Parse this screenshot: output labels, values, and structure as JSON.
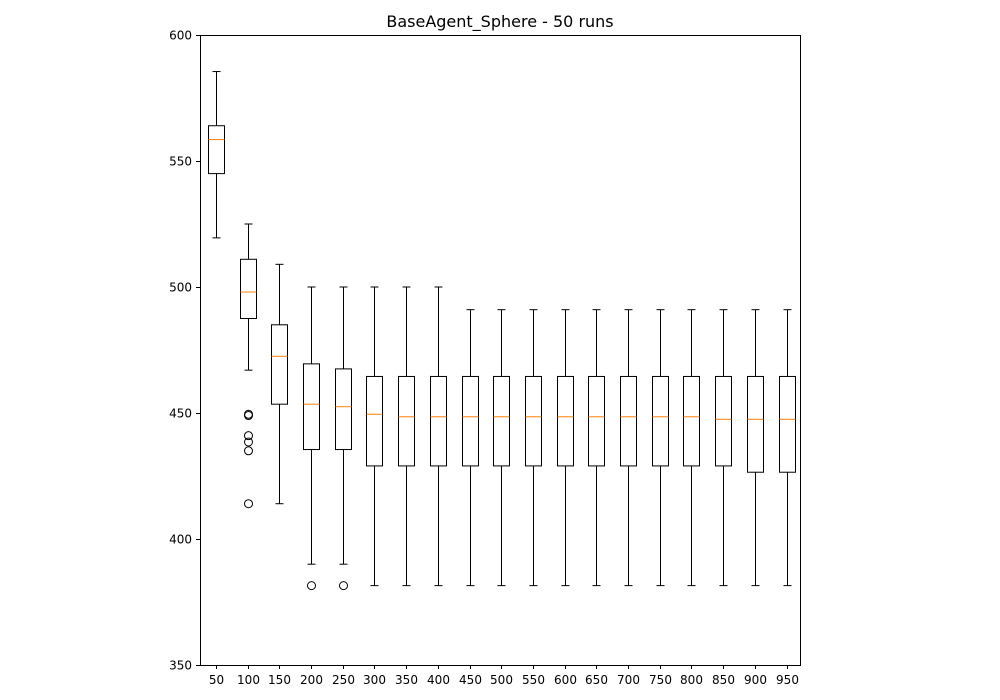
{
  "chart_data": {
    "type": "box",
    "title": "BaseAgent_Sphere - 50 runs",
    "xlabel": "",
    "ylabel": "",
    "ylim": [
      350,
      600
    ],
    "yticks": [
      350,
      400,
      450,
      500,
      550,
      600
    ],
    "grid": false,
    "colors": {
      "box": "#000000",
      "median": "#ff7f0e"
    },
    "categories": [
      "50",
      "100",
      "150",
      "200",
      "250",
      "300",
      "350",
      "400",
      "450",
      "500",
      "550",
      "600",
      "650",
      "700",
      "750",
      "800",
      "850",
      "900",
      "950"
    ],
    "boxes": [
      {
        "whislo": 519.5,
        "q1": 545,
        "med": 558.5,
        "q3": 564,
        "whishi": 585.5,
        "fliers": []
      },
      {
        "whislo": 467,
        "q1": 487.5,
        "med": 498,
        "q3": 511,
        "whishi": 525,
        "fliers": [
          449.5,
          449,
          441,
          438.5,
          435,
          414
        ]
      },
      {
        "whislo": 414,
        "q1": 453.5,
        "med": 472.5,
        "q3": 485,
        "whishi": 509,
        "fliers": []
      },
      {
        "whislo": 390,
        "q1": 435.5,
        "med": 453.5,
        "q3": 469.5,
        "whishi": 500,
        "fliers": [
          381.5
        ]
      },
      {
        "whislo": 390,
        "q1": 435.5,
        "med": 452.5,
        "q3": 467.5,
        "whishi": 500,
        "fliers": [
          381.5
        ]
      },
      {
        "whislo": 381.5,
        "q1": 429,
        "med": 449.5,
        "q3": 464.5,
        "whishi": 500,
        "fliers": []
      },
      {
        "whislo": 381.5,
        "q1": 429,
        "med": 448.5,
        "q3": 464.5,
        "whishi": 500,
        "fliers": []
      },
      {
        "whislo": 381.5,
        "q1": 429,
        "med": 448.5,
        "q3": 464.5,
        "whishi": 500,
        "fliers": []
      },
      {
        "whislo": 381.5,
        "q1": 429,
        "med": 448.5,
        "q3": 464.5,
        "whishi": 491,
        "fliers": []
      },
      {
        "whislo": 381.5,
        "q1": 429,
        "med": 448.5,
        "q3": 464.5,
        "whishi": 491,
        "fliers": []
      },
      {
        "whislo": 381.5,
        "q1": 429,
        "med": 448.5,
        "q3": 464.5,
        "whishi": 491,
        "fliers": []
      },
      {
        "whislo": 381.5,
        "q1": 429,
        "med": 448.5,
        "q3": 464.5,
        "whishi": 491,
        "fliers": []
      },
      {
        "whislo": 381.5,
        "q1": 429,
        "med": 448.5,
        "q3": 464.5,
        "whishi": 491,
        "fliers": []
      },
      {
        "whislo": 381.5,
        "q1": 429,
        "med": 448.5,
        "q3": 464.5,
        "whishi": 491,
        "fliers": []
      },
      {
        "whislo": 381.5,
        "q1": 429,
        "med": 448.5,
        "q3": 464.5,
        "whishi": 491,
        "fliers": []
      },
      {
        "whislo": 381.5,
        "q1": 429,
        "med": 448.5,
        "q3": 464.5,
        "whishi": 491,
        "fliers": []
      },
      {
        "whislo": 381.5,
        "q1": 429,
        "med": 447.5,
        "q3": 464.5,
        "whishi": 491,
        "fliers": []
      },
      {
        "whislo": 381.5,
        "q1": 426.5,
        "med": 447.5,
        "q3": 464.5,
        "whishi": 491,
        "fliers": []
      },
      {
        "whislo": 381.5,
        "q1": 426.5,
        "med": 447.5,
        "q3": 464.5,
        "whishi": 491,
        "fliers": []
      }
    ]
  }
}
